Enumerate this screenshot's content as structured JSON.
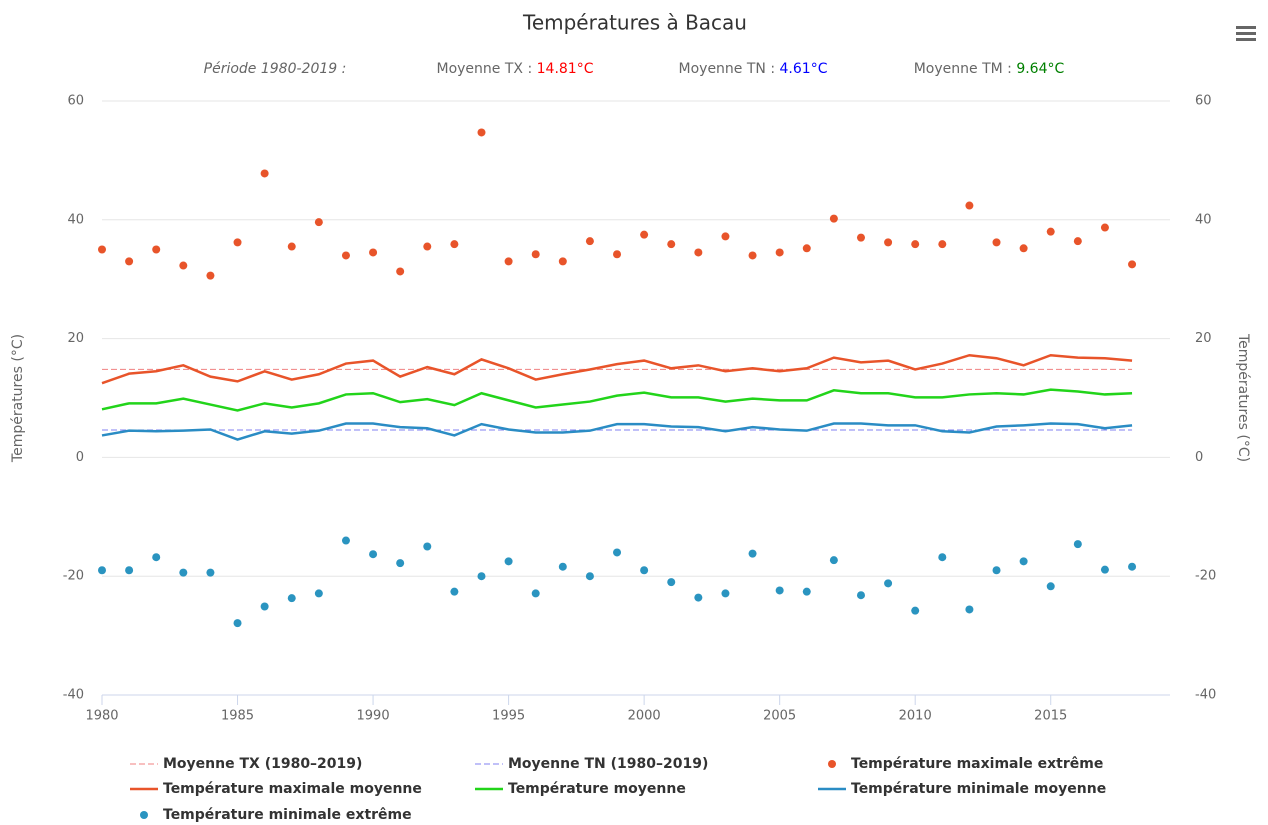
{
  "chart_data": {
    "type": "line",
    "title": "Températures à Bacau",
    "subtitle": "Période 1980-2019 :",
    "stats": [
      {
        "label": "Moyenne TX : ",
        "value_label": "14.81°C",
        "color": "#ff0000"
      },
      {
        "label": "Moyenne TN : ",
        "value_label": "4.61°C",
        "color": "#0000ff"
      },
      {
        "label": "Moyenne TM : ",
        "value_label": "9.64°C",
        "color": "#008000"
      }
    ],
    "y_label": "Températures (°C)",
    "y2_label": "Températures (°C)",
    "x": [
      1980,
      1981,
      1982,
      1983,
      1984,
      1985,
      1986,
      1987,
      1988,
      1989,
      1990,
      1991,
      1992,
      1993,
      1994,
      1995,
      1996,
      1997,
      1998,
      1999,
      2000,
      2001,
      2002,
      2003,
      2004,
      2005,
      2006,
      2007,
      2008,
      2009,
      2010,
      2011,
      2012,
      2013,
      2014,
      2015,
      2016,
      2017,
      2018
    ],
    "xlim": [
      1980,
      2019.4
    ],
    "xticks": [
      1980,
      1985,
      1990,
      1995,
      2000,
      2005,
      2010,
      2015
    ],
    "ylim": [
      -40,
      60
    ],
    "yticks": [
      -40,
      -20,
      0,
      20,
      40,
      60
    ],
    "y2lim": [
      -40,
      60
    ],
    "y2ticks": [
      -40,
      -20,
      0,
      20,
      40,
      60
    ],
    "grid": true,
    "series": [
      {
        "name": "Moyenne TX (1980–2019)",
        "kind": "hline",
        "color": "#f08080",
        "value": 14.81
      },
      {
        "name": "Moyenne TN (1980–2019)",
        "kind": "hline",
        "color": "#8080f0",
        "value": 4.61
      },
      {
        "name": "Température maximale extrême",
        "kind": "scatter",
        "color": "#e8542a",
        "values": [
          35.0,
          33.0,
          35.0,
          32.3,
          30.6,
          36.2,
          47.8,
          35.5,
          39.6,
          34.0,
          34.5,
          31.3,
          35.5,
          35.9,
          54.7,
          33.0,
          34.2,
          33.0,
          36.4,
          34.2,
          37.5,
          35.9,
          34.5,
          37.2,
          34.0,
          34.5,
          35.2,
          40.2,
          37.0,
          36.2,
          35.9,
          35.9,
          42.4,
          36.2,
          35.2,
          38.0,
          36.4,
          38.7,
          32.5
        ]
      },
      {
        "name": "Température maximale moyenne",
        "kind": "line",
        "color": "#e8542a",
        "values": [
          12.5,
          14.1,
          14.5,
          15.5,
          13.6,
          12.8,
          14.5,
          13.1,
          14.0,
          15.8,
          16.3,
          13.6,
          15.2,
          14.0,
          16.5,
          15.0,
          13.1,
          14.0,
          14.8,
          15.7,
          16.3,
          15.0,
          15.5,
          14.5,
          15.0,
          14.5,
          15.0,
          16.8,
          16.0,
          16.3,
          14.8,
          15.8,
          17.2,
          16.7,
          15.5,
          17.2,
          16.8,
          16.7,
          16.3
        ]
      },
      {
        "name": "Température moyenne",
        "kind": "line",
        "color": "#22d41a",
        "values": [
          8.1,
          9.1,
          9.1,
          9.9,
          8.9,
          7.9,
          9.1,
          8.4,
          9.1,
          10.6,
          10.8,
          9.3,
          9.8,
          8.8,
          10.8,
          9.6,
          8.4,
          8.9,
          9.4,
          10.4,
          10.9,
          10.1,
          10.1,
          9.4,
          9.9,
          9.6,
          9.6,
          11.3,
          10.8,
          10.8,
          10.1,
          10.1,
          10.6,
          10.8,
          10.6,
          11.4,
          11.1,
          10.6,
          10.8
        ]
      },
      {
        "name": "Température minimale moyenne",
        "kind": "line",
        "color": "#2a8cc4",
        "values": [
          3.7,
          4.5,
          4.4,
          4.5,
          4.7,
          3.0,
          4.4,
          4.0,
          4.5,
          5.7,
          5.7,
          5.1,
          4.9,
          3.7,
          5.6,
          4.7,
          4.2,
          4.2,
          4.5,
          5.6,
          5.6,
          5.2,
          5.1,
          4.4,
          5.1,
          4.7,
          4.5,
          5.7,
          5.7,
          5.4,
          5.4,
          4.4,
          4.2,
          5.2,
          5.4,
          5.7,
          5.6,
          4.9,
          5.4
        ]
      },
      {
        "name": "Température minimale extrême",
        "kind": "scatter",
        "color": "#2a94c0",
        "values": [
          -19.0,
          -19.0,
          -16.8,
          -19.4,
          -19.4,
          -27.9,
          -25.1,
          -23.7,
          -22.9,
          -14.0,
          -16.3,
          -17.8,
          -15.0,
          -22.6,
          -20.0,
          -17.5,
          -22.9,
          -18.4,
          -20.0,
          -16.0,
          -19.0,
          -21.0,
          -23.6,
          -22.9,
          -16.2,
          -22.4,
          -22.6,
          -17.3,
          -23.2,
          -21.2,
          -25.8,
          -16.8,
          -25.6,
          -19.0,
          -17.5,
          -21.7,
          -14.6,
          -18.9,
          -18.4
        ]
      }
    ]
  }
}
